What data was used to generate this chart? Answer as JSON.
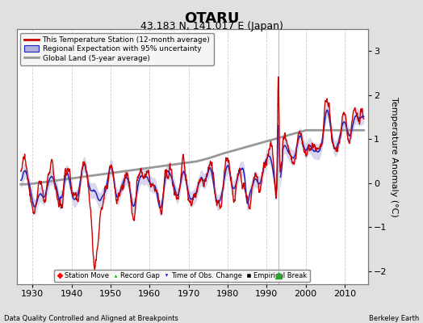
{
  "title": "OTARU",
  "subtitle": "43.183 N, 141.017 E (Japan)",
  "ylabel": "Temperature Anomaly (°C)",
  "xlabel_bottom_left": "Data Quality Controlled and Aligned at Breakpoints",
  "xlabel_bottom_right": "Berkeley Earth",
  "ylim": [
    -2.3,
    3.5
  ],
  "xlim": [
    1926,
    2016
  ],
  "xticks": [
    1930,
    1940,
    1950,
    1960,
    1970,
    1980,
    1990,
    2000,
    2010
  ],
  "yticks": [
    -2,
    -1,
    0,
    1,
    2,
    3
  ],
  "bg_color": "#e0e0e0",
  "plot_bg_color": "#ffffff",
  "grid_color": "#cccccc",
  "red_line_color": "#cc0000",
  "blue_line_color": "#2222bb",
  "blue_fill_color": "#b0b0dd",
  "gray_line_color": "#999999",
  "vertical_line_x": 1993,
  "vertical_line_color": "#999999",
  "marker_green_x": 1993,
  "marker_green_y": -2.1,
  "title_fontsize": 13,
  "subtitle_fontsize": 9,
  "tick_fontsize": 8,
  "label_fontsize": 8
}
